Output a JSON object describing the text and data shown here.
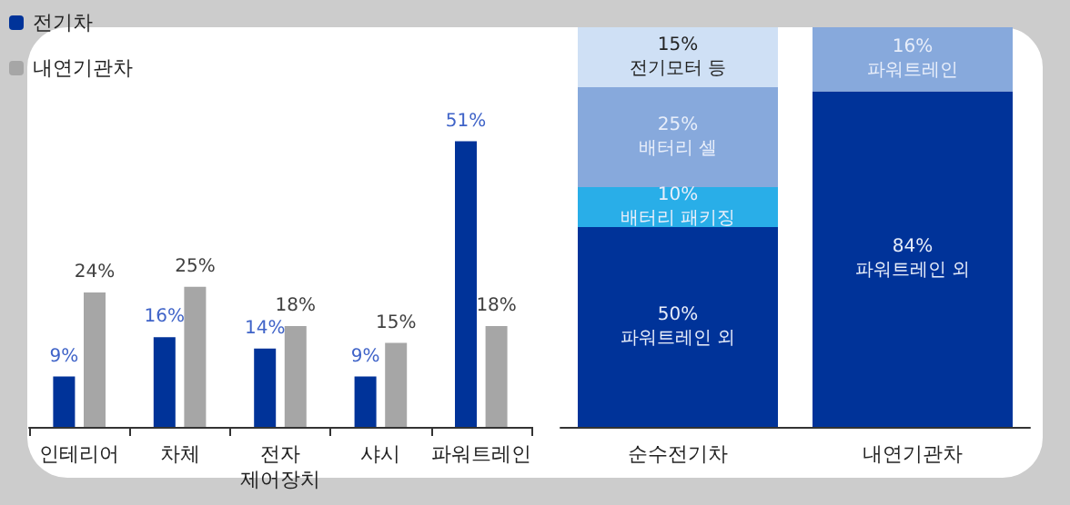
{
  "chart_data": [
    {
      "type": "bar",
      "categories": [
        "인테리어",
        "차체",
        "전자\n제어장치",
        "샤시",
        "파워트레인"
      ],
      "series": [
        {
          "name": "전기차",
          "color": "#003399",
          "values": [
            9,
            16,
            14,
            9,
            51
          ],
          "value_labels": [
            "9%",
            "16%",
            "14%",
            "9%",
            "51%"
          ]
        },
        {
          "name": "내연기관차",
          "color": "#a6a6a6",
          "values": [
            24,
            25,
            18,
            15,
            18
          ],
          "value_labels": [
            "24%",
            "25%",
            "18%",
            "15%",
            "18%"
          ]
        }
      ],
      "tick_labels": "x",
      "legend": "top left",
      "grid": false
    },
    {
      "type": "bar",
      "stacked": true,
      "categories": [
        "순수전기차",
        "내연기관차"
      ],
      "series": [
        {
          "name": "파워트레인 외",
          "color": "#003399",
          "values": [
            50,
            84
          ],
          "value_labels": [
            "50%",
            "84%"
          ]
        },
        {
          "name": "배터리 패키징",
          "color": "#29aee8",
          "values": [
            10,
            null
          ],
          "value_labels": [
            "10%",
            null
          ]
        },
        {
          "name": "배터리 셀",
          "color": "#87a9dc",
          "values": [
            25,
            null
          ],
          "value_labels": [
            "25%",
            null
          ]
        },
        {
          "name": "파워트레인",
          "color": "#87a9dc",
          "values": [
            null,
            16
          ],
          "value_labels": [
            null,
            "16%"
          ]
        },
        {
          "name": "전기모터 등",
          "color": "#cfe0f5",
          "values": [
            15,
            null
          ],
          "value_labels": [
            "15%",
            null
          ]
        }
      ],
      "ylim": [
        0,
        100
      ],
      "tick_labels": "x",
      "legend": false,
      "grid": false
    }
  ]
}
